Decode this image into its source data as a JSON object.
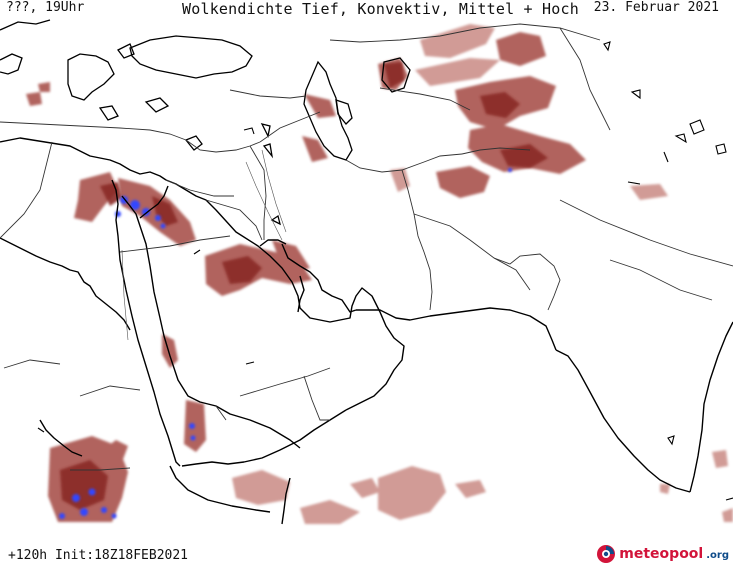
{
  "header": {
    "run_time": "???, 19Uhr",
    "title": "Wolkendichte  Tief, Konvektiv, Mittel + Hoch",
    "date": "23. Februar 2021"
  },
  "footer": {
    "forecast_info": "+120h Init:18Z18FEB2021",
    "logo_word": "meteopool",
    "logo_tld": ".org"
  },
  "colors": {
    "cloud_light": "#c98a84",
    "cloud_medium": "#a9524d",
    "cloud_dark": "#8a2a26",
    "convective": "#3347ff",
    "coastline": "#000000",
    "border": "#333333"
  },
  "icons": [
    "meteopool-logo-icon"
  ]
}
